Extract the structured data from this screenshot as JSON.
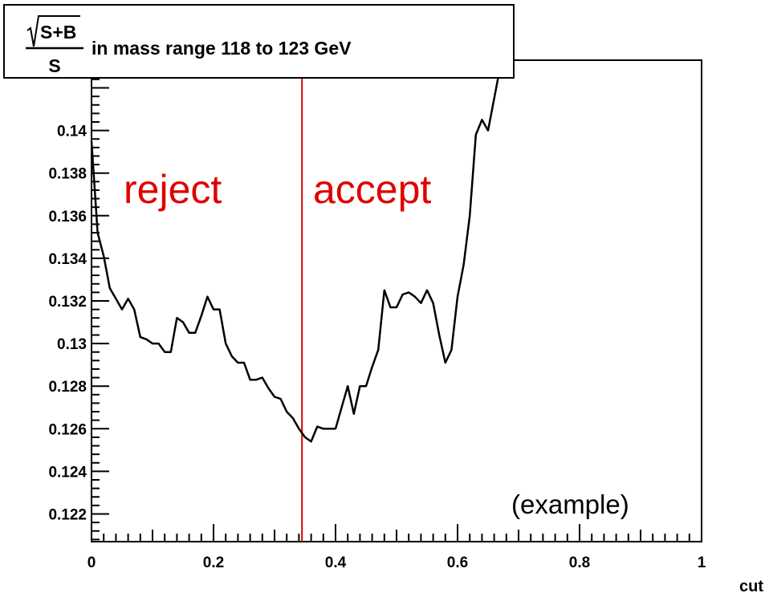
{
  "chart_data": {
    "type": "line",
    "title": "in mass range 118 to 123 GeV",
    "title_formula": {
      "numerator": "S+B",
      "denominator": "S"
    },
    "xlabel": "cut",
    "ylabel": "",
    "xlim": [
      0,
      1
    ],
    "ylim": [
      0.1207,
      0.1433
    ],
    "x_ticks": [
      "0",
      "0.2",
      "0.4",
      "0.6",
      "0.8",
      "1"
    ],
    "y_ticks": [
      "0.122",
      "0.124",
      "0.126",
      "0.128",
      "0.13",
      "0.132",
      "0.134",
      "0.136",
      "0.138",
      "0.14"
    ],
    "grid": false,
    "legend": "none",
    "colors": {
      "line": "#000000",
      "cut_line": "#e00000",
      "annotation": "#e00000"
    },
    "series": [
      {
        "x": [
          0.0,
          0.01,
          0.02,
          0.03,
          0.04,
          0.05,
          0.06,
          0.07,
          0.08,
          0.09,
          0.1,
          0.11,
          0.12,
          0.13,
          0.14,
          0.15,
          0.16,
          0.17,
          0.18,
          0.19,
          0.2,
          0.21,
          0.22,
          0.23,
          0.24,
          0.25,
          0.26,
          0.27,
          0.28,
          0.29,
          0.3,
          0.31,
          0.32,
          0.33,
          0.34,
          0.35,
          0.36,
          0.37,
          0.38,
          0.39,
          0.4,
          0.41,
          0.42,
          0.43,
          0.44,
          0.45,
          0.46,
          0.47,
          0.48,
          0.49,
          0.5,
          0.51,
          0.52,
          0.53,
          0.54,
          0.55,
          0.56,
          0.57,
          0.58,
          0.59,
          0.6,
          0.61,
          0.62,
          0.63,
          0.64,
          0.65,
          0.66,
          0.67,
          0.675
        ],
        "y": [
          0.1395,
          0.1352,
          0.1341,
          0.1326,
          0.1321,
          0.1316,
          0.1321,
          0.1316,
          0.1303,
          0.1302,
          0.13,
          0.13,
          0.1296,
          0.1296,
          0.1312,
          0.131,
          0.1305,
          0.1305,
          0.1313,
          0.1322,
          0.1316,
          0.1316,
          0.13,
          0.1294,
          0.1291,
          0.1291,
          0.1283,
          0.1283,
          0.1284,
          0.1279,
          0.1275,
          0.1274,
          0.1268,
          0.1265,
          0.126,
          0.1256,
          0.1254,
          0.1261,
          0.126,
          0.126,
          0.126,
          0.127,
          0.128,
          0.1267,
          0.128,
          0.128,
          0.1289,
          0.1297,
          0.1325,
          0.1317,
          0.1317,
          0.1323,
          0.1324,
          0.1322,
          0.1319,
          0.1325,
          0.1319,
          0.1304,
          0.1291,
          0.1297,
          0.1322,
          0.1337,
          0.136,
          0.1398,
          0.1405,
          0.14,
          0.1415,
          0.143,
          0.1433
        ]
      }
    ],
    "cut_x": 0.345,
    "annotations": {
      "reject": "reject",
      "accept": "accept",
      "example": "(example)"
    }
  }
}
